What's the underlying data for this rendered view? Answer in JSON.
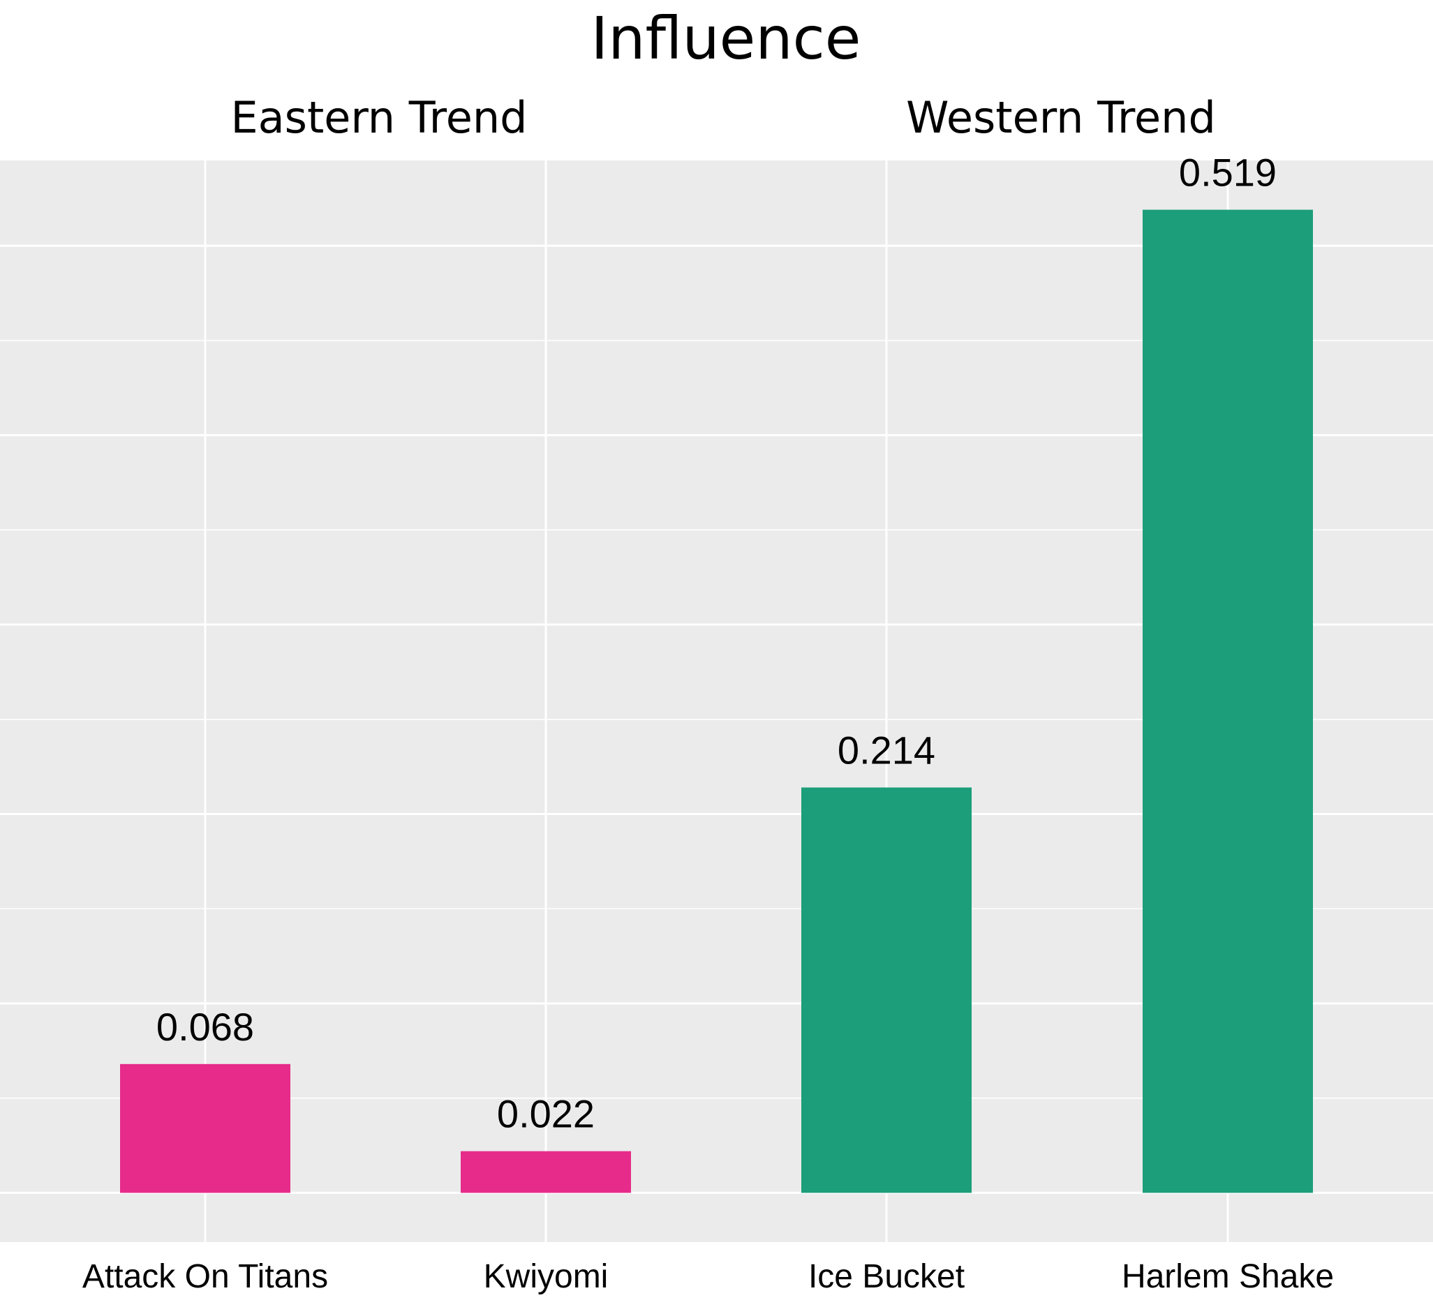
{
  "chart_data": {
    "type": "bar",
    "title": "Influence",
    "xlabel": "",
    "ylabel": "",
    "ylim": [
      -0.026,
      0.545
    ],
    "grid": true,
    "groups": [
      {
        "name": "Eastern Trend",
        "color": "#e72b8a",
        "categories": [
          "Attack On Titans",
          "Kwiyomi"
        ],
        "values": [
          0.068,
          0.022
        ]
      },
      {
        "name": "Western Trend",
        "color": "#1b9e79",
        "categories": [
          "Ice Bucket",
          "Harlem Shake"
        ],
        "values": [
          0.214,
          0.519
        ]
      }
    ],
    "categories": [
      "Attack On Titans",
      "Kwiyomi",
      "Ice Bucket",
      "Harlem Shake"
    ],
    "values": [
      0.068,
      0.022,
      0.214,
      0.519
    ],
    "data_labels": [
      "0.068",
      "0.022",
      "0.214",
      "0.519"
    ],
    "colors": {
      "panel_background": "#ebebeb",
      "grid": "#ffffff",
      "eastern": "#e72b8a",
      "western": "#1b9e79"
    }
  }
}
